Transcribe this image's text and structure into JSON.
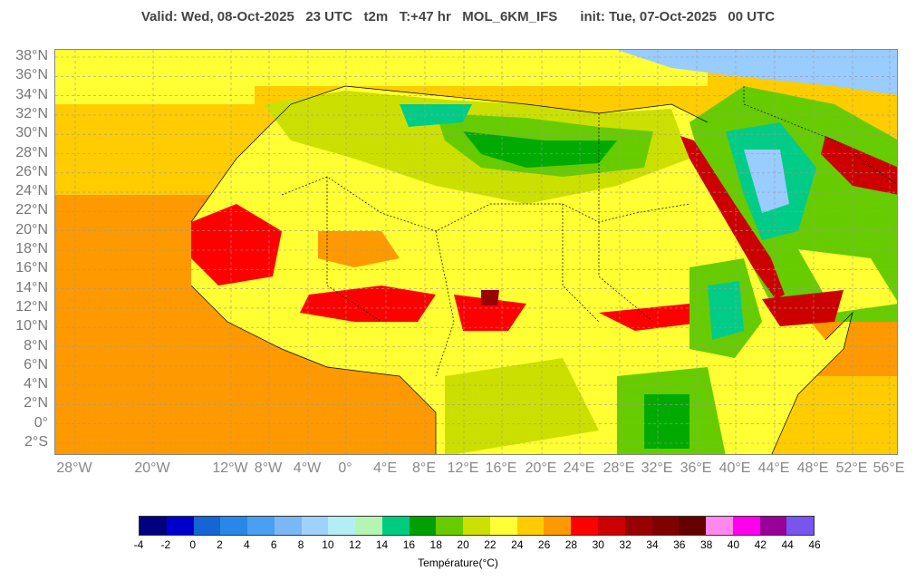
{
  "header": {
    "title": "Valid: Wed, 08-Oct-2025   23 UTC   t2m   T:+47 hr   MOL_6KM_IFS      init: Tue, 07-Oct-2025   00 UTC"
  },
  "map": {
    "lat_labels": [
      "38°N",
      "36°N",
      "34°N",
      "32°N",
      "30°N",
      "28°N",
      "26°N",
      "24°N",
      "22°N",
      "20°N",
      "18°N",
      "16°N",
      "14°N",
      "12°N",
      "10°N",
      "8°N",
      "6°N",
      "4°N",
      "2°N",
      "0°",
      "2°S"
    ],
    "lon_labels": [
      "28°W",
      "20°W",
      "12°W",
      "8°W",
      "4°W",
      "0°",
      "4°E",
      "8°E",
      "12°E",
      "16°E",
      "20°E",
      "24°E",
      "28°E",
      "32°E",
      "36°E",
      "40°E",
      "44°E",
      "48°E",
      "52°E",
      "56°E"
    ],
    "colors": {
      "ocean_warm": "#ff9900",
      "ocean_mild": "#ffcc00",
      "land_hot": "#ff0000",
      "land_warm": "#ffff33",
      "land_mild": "#cce000",
      "land_cool": "#66cc00",
      "land_cold": "#00aa00",
      "highland": "#00cc88",
      "cold_sea": "#99ccff",
      "red_sea": "#cc0000",
      "border": "#000000"
    }
  },
  "legend": {
    "ticks": [
      "-4",
      "-2",
      "0",
      "2",
      "4",
      "6",
      "8",
      "10",
      "12",
      "14",
      "16",
      "18",
      "20",
      "22",
      "24",
      "26",
      "28",
      "30",
      "32",
      "34",
      "36",
      "38",
      "40",
      "42",
      "44",
      "46"
    ],
    "colors": [
      "#000080",
      "#0000cc",
      "#1466d4",
      "#2a86e8",
      "#4aa0f0",
      "#79b8f5",
      "#9fd2fa",
      "#b4eef5",
      "#b4f5b4",
      "#00cc80",
      "#00a000",
      "#66cc00",
      "#cce000",
      "#ffff33",
      "#ffcc00",
      "#ff9900",
      "#ff0000",
      "#cc0000",
      "#990000",
      "#800000",
      "#660000",
      "#ff88ee",
      "#ff00ee",
      "#990099",
      "#7755ee"
    ],
    "title": "Température(°C)"
  }
}
